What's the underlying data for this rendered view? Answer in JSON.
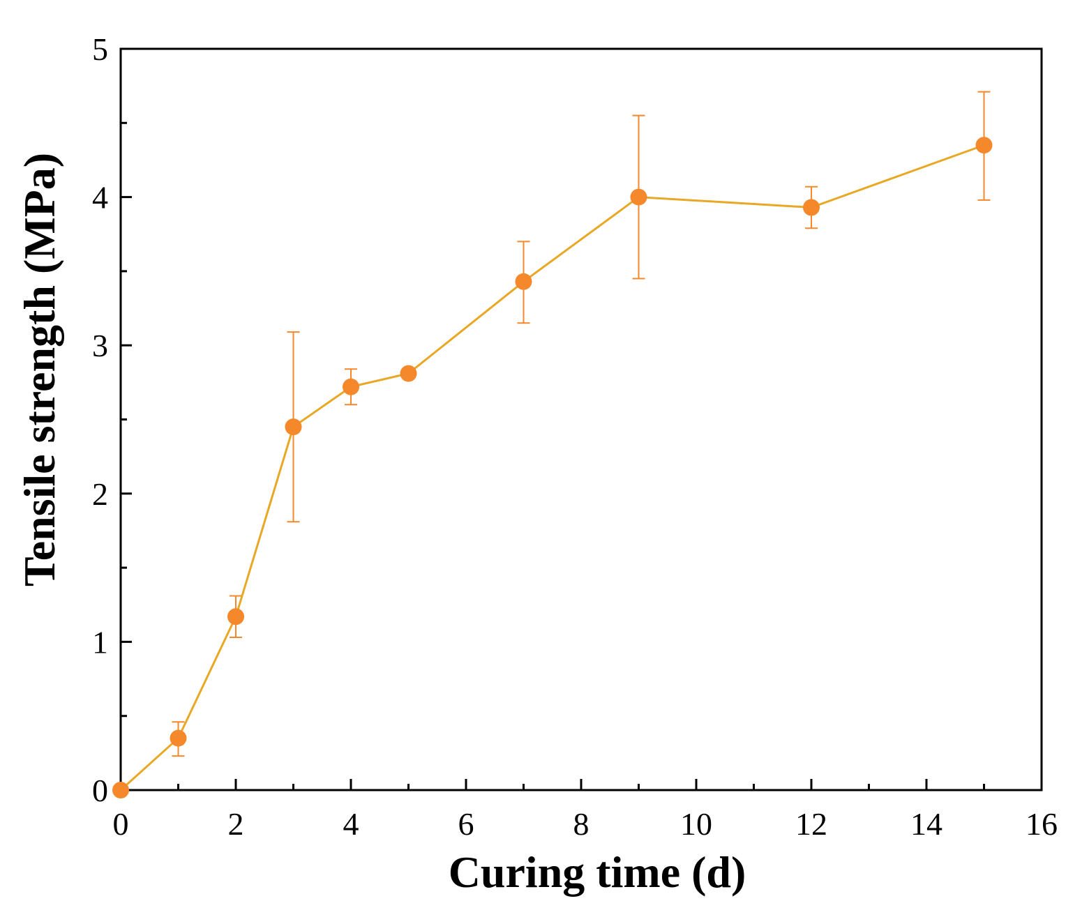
{
  "chart_data": {
    "type": "line",
    "title": "",
    "xlabel": "Curing time (d)",
    "ylabel": "Tensile strength (MPa)",
    "xlim": [
      0,
      16
    ],
    "ylim": [
      0,
      5
    ],
    "xticks": [
      0,
      2,
      4,
      6,
      8,
      10,
      12,
      14,
      16
    ],
    "yticks": [
      0,
      1,
      2,
      3,
      4,
      5
    ],
    "grid": false,
    "series": [
      {
        "name": "Tensile strength",
        "x": [
          0,
          1,
          2,
          3,
          4,
          5,
          7,
          9,
          12,
          15
        ],
        "y": [
          0,
          0.35,
          1.17,
          2.45,
          2.72,
          2.81,
          3.43,
          4.0,
          3.93,
          4.35
        ],
        "err_low": [
          null,
          0.23,
          1.03,
          1.81,
          2.6,
          null,
          3.15,
          3.45,
          3.79,
          3.98
        ],
        "err_high": [
          null,
          0.46,
          1.31,
          3.09,
          2.84,
          null,
          3.7,
          4.55,
          4.07,
          4.71
        ],
        "line_color": "#E8A825",
        "marker_color": "#F5882A",
        "error_color": "#F5882A"
      }
    ]
  }
}
